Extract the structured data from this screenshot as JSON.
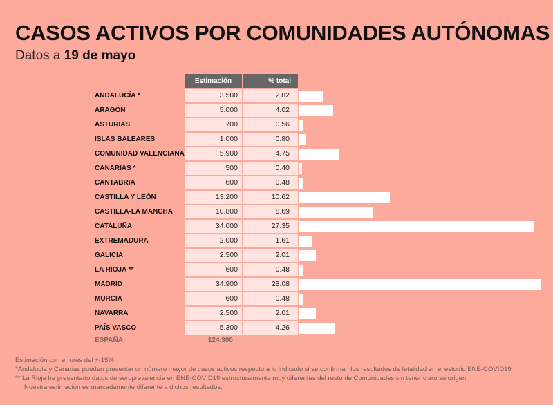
{
  "title": "CASOS ACTIVOS POR COMUNIDADES AUTÓNOMAS",
  "subtitle_prefix": "Datos a",
  "subtitle_date": "19 de mayo",
  "colors": {
    "background": "#fdaa9c",
    "header": "#666666",
    "cell": "#ffe4df",
    "bar": "#ffffff"
  },
  "chart_data": {
    "type": "bar",
    "title": "CASOS ACTIVOS POR COMUNIDADES AUTÓNOMAS",
    "columns": [
      "Estimación",
      "% total"
    ],
    "xlim": [
      0,
      28.08
    ],
    "rows": [
      {
        "name": "ANDALUCÍA *",
        "estimate": "3.500",
        "pct": "2.82",
        "value": 2.82
      },
      {
        "name": "ARAGÓN",
        "estimate": "5.000",
        "pct": "4.02",
        "value": 4.02
      },
      {
        "name": "ASTURIAS",
        "estimate": "700",
        "pct": "0.56",
        "value": 0.56
      },
      {
        "name": "ISLAS BALEARES",
        "estimate": "1.000",
        "pct": "0.80",
        "value": 0.8
      },
      {
        "name": "COMUNIDAD VALENCIANA",
        "estimate": "5.900",
        "pct": "4.75",
        "value": 4.75
      },
      {
        "name": "CANARIAS *",
        "estimate": "500",
        "pct": "0.40",
        "value": 0.4
      },
      {
        "name": "CANTABRIA",
        "estimate": "600",
        "pct": "0.48",
        "value": 0.48
      },
      {
        "name": "CASTILLA Y LEÓN",
        "estimate": "13.200",
        "pct": "10.62",
        "value": 10.62
      },
      {
        "name": "CASTILLA-LA MANCHA",
        "estimate": "10.800",
        "pct": "8.69",
        "value": 8.69
      },
      {
        "name": "CATALUÑA",
        "estimate": "34.000",
        "pct": "27.35",
        "value": 27.35
      },
      {
        "name": "EXTREMADURA",
        "estimate": "2.000",
        "pct": "1.61",
        "value": 1.61
      },
      {
        "name": "GALICIA",
        "estimate": "2.500",
        "pct": "2.01",
        "value": 2.01
      },
      {
        "name": "LA RIOJA **",
        "estimate": "600",
        "pct": "0.48",
        "value": 0.48
      },
      {
        "name": "MADRID",
        "estimate": "34.900",
        "pct": "28.08",
        "value": 28.08
      },
      {
        "name": "MURCIA",
        "estimate": "600",
        "pct": "0.48",
        "value": 0.48
      },
      {
        "name": "NAVARRA",
        "estimate": "2.500",
        "pct": "2.01",
        "value": 2.01
      },
      {
        "name": "PAÍS VASCO",
        "estimate": "5.300",
        "pct": "4.26",
        "value": 4.26
      }
    ],
    "total": {
      "name": "ESPAÑA",
      "estimate": "124.300"
    }
  },
  "notes": [
    "Estimación con errores del +-15%",
    "*Andalucía y Canarias pueden presentar un número mayor de casos activos respecto a lo indicado si se confirman los resultados de letalidad en el estudio ENE-COVID19",
    "** La Rioja ha presentado datos de seroprevalencia en ENE-COVID19 estructuralmente muy diferentes del resto de Comunidades sin tener claro su origen.",
    "Nuestra estimación es marcadamente diferente a dichos resultados."
  ]
}
